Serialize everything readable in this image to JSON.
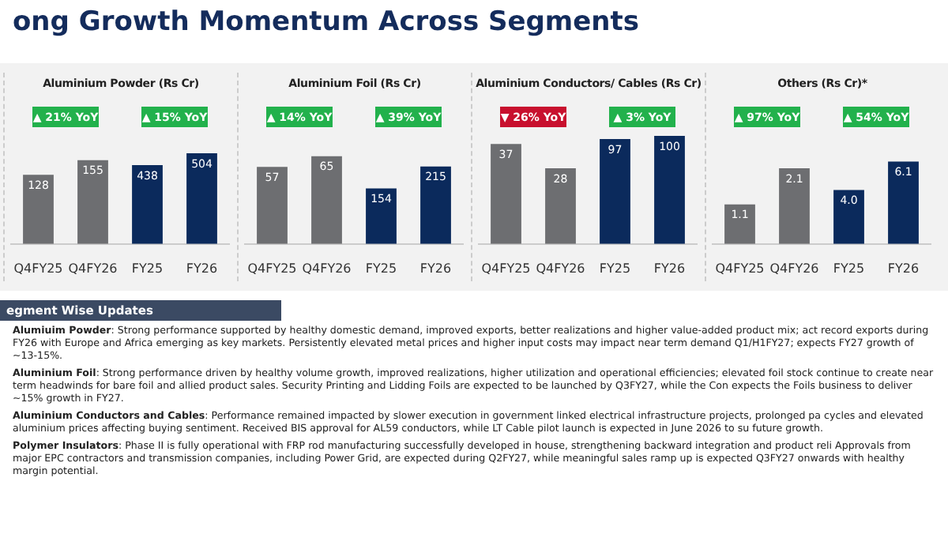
{
  "chart_data": [
    {
      "type": "other",
      "title": "ong Growth Momentum Across Segments"
    },
    {
      "type": "bar",
      "title": "Aluminium Powder (Rs Cr)",
      "categories": [
        "Q4FY25",
        "Q4FY26",
        "FY25",
        "FY26"
      ],
      "tick_labels": "x",
      "data_labels": true,
      "legend": false,
      "grid": false,
      "series": [
        {
          "color": "#6d6e71",
          "values": [
            128,
            155,
            null,
            null
          ]
        },
        {
          "color": "#0b2a5c",
          "axis": "y2",
          "values": [
            null,
            null,
            438,
            504
          ]
        }
      ],
      "annotations": [
        "▲ 21% YoY",
        "▲ 15% YoY"
      ]
    },
    {
      "type": "bar",
      "title": "Aluminium Foil (Rs Cr)",
      "categories": [
        "Q4FY25",
        "Q4FY26",
        "FY25",
        "FY26"
      ],
      "tick_labels": "x",
      "data_labels": true,
      "legend": false,
      "grid": false,
      "series": [
        {
          "color": "#6d6e71",
          "values": [
            57,
            65,
            null,
            null
          ]
        },
        {
          "color": "#0b2a5c",
          "axis": "y2",
          "values": [
            null,
            null,
            154,
            215
          ]
        }
      ],
      "annotations": [
        "▲ 14% YoY",
        "▲ 39% YoY"
      ]
    },
    {
      "type": "bar",
      "title": "Aluminium Conductors/ Cables (Rs Cr)",
      "categories": [
        "Q4FY25",
        "Q4FY26",
        "FY25",
        "FY26"
      ],
      "tick_labels": "x",
      "data_labels": true,
      "legend": false,
      "grid": false,
      "series": [
        {
          "color": "#6d6e71",
          "values": [
            37,
            28,
            null,
            null
          ]
        },
        {
          "color": "#0b2a5c",
          "axis": "y2",
          "values": [
            null,
            null,
            97,
            100
          ]
        }
      ],
      "annotations": [
        "▼ 26% YoY",
        "▲ 3% YoY"
      ]
    },
    {
      "type": "bar",
      "title": "Others (Rs Cr)*",
      "categories": [
        "Q4FY25",
        "Q4FY26",
        "FY25",
        "FY26"
      ],
      "tick_labels": "x",
      "data_labels": true,
      "legend": false,
      "grid": false,
      "series": [
        {
          "color": "#6d6e71",
          "values": [
            1.1,
            2.1,
            null,
            null
          ],
          "value_labels": [
            "1.1",
            "2.1",
            null,
            null
          ]
        },
        {
          "color": "#0b2a5c",
          "axis": "y2",
          "values": [
            null,
            null,
            4.0,
            6.1
          ],
          "value_labels": [
            null,
            null,
            "4.0",
            "6.1"
          ]
        }
      ],
      "annotations": [
        "▲ 97% YoY",
        "▲ 54% YoY"
      ]
    },
    {
      "type": "other",
      "title": "egment Wise Updates",
      "annotations": [
        "Alumiuim Powder: Strong performance supported by healthy domestic demand, improved exports, better realizations and higher value-added product mix; act record exports during FY26 with Europe and Africa emerging as key markets. Persistently elevated metal prices and higher input costs may impact near term demand Q1/H1FY27; expects FY27 growth of ~13-15%.",
        "Aluminium Foil: Strong performance driven by healthy volume growth, improved realizations, higher utilization and operational efficiencies; elevated foil stock continue to create near term headwinds for bare foil and allied product sales. Security Printing and Lidding Foils are expected to be launched by Q3FY27, while the Con expects the Foils business to deliver ~15% growth in FY27.",
        "Aluminium Conductors and Cables: Performance remained impacted by slower execution in government linked electrical infrastructure projects, prolonged pa cycles and elevated aluminium prices affecting buying sentiment. Received BIS approval for AL59 conductors, while LT Cable pilot launch is expected in June 2026 to su future growth.",
        "Polymer Insulators: Phase II is fully operational with FRP rod manufacturing successfully developed in house, strengthening backward integration and product reli Approvals from major EPC contractors and transmission companies, including Power Grid, are expected during Q2FY27, while meaningful sales ramp up is expected Q3FY27 onwards with healthy margin potential."
      ]
    }
  ]
}
